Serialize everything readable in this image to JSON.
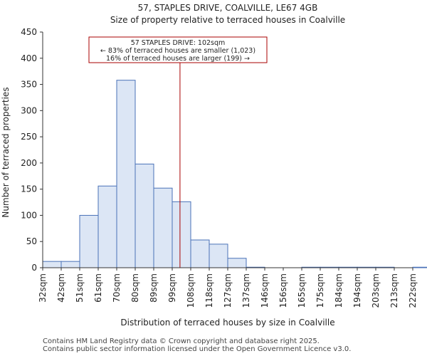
{
  "chart_data": {
    "type": "bar",
    "title": "57, STAPLES DRIVE, COALVILLE, LE67 4GB",
    "subtitle": "Size of property relative to terraced houses in Coalville",
    "xlabel": "Distribution of terraced houses by size in Coalville",
    "ylabel": "Number of terraced properties",
    "categories": [
      "32sqm",
      "42sqm",
      "51sqm",
      "61sqm",
      "70sqm",
      "80sqm",
      "89sqm",
      "99sqm",
      "108sqm",
      "118sqm",
      "127sqm",
      "137sqm",
      "146sqm",
      "156sqm",
      "165sqm",
      "175sqm",
      "184sqm",
      "194sqm",
      "203sqm",
      "213sqm",
      "222sqm"
    ],
    "values": [
      12,
      12,
      100,
      156,
      358,
      198,
      152,
      126,
      53,
      45,
      18,
      1,
      0,
      0,
      1,
      1,
      1,
      1,
      1,
      0,
      1
    ],
    "ylim": [
      0,
      450
    ],
    "yticks": [
      0,
      50,
      100,
      150,
      200,
      250,
      300,
      350,
      400,
      450
    ],
    "grid": false,
    "bar_color": "#dce6f5",
    "bar_edge_color": "#4a72b8",
    "marker": {
      "value_sqm": 102,
      "position_bin": 7.42,
      "color": "#aa0000",
      "annotation_lines": [
        "57 STAPLES DRIVE: 102sqm",
        "← 83% of terraced houses are smaller (1,023)",
        "16% of terraced houses are larger (199) →"
      ]
    }
  },
  "footer": {
    "line1": "Contains HM Land Registry data © Crown copyright and database right 2025.",
    "line2": "Contains public sector information licensed under the Open Government Licence v3.0."
  }
}
